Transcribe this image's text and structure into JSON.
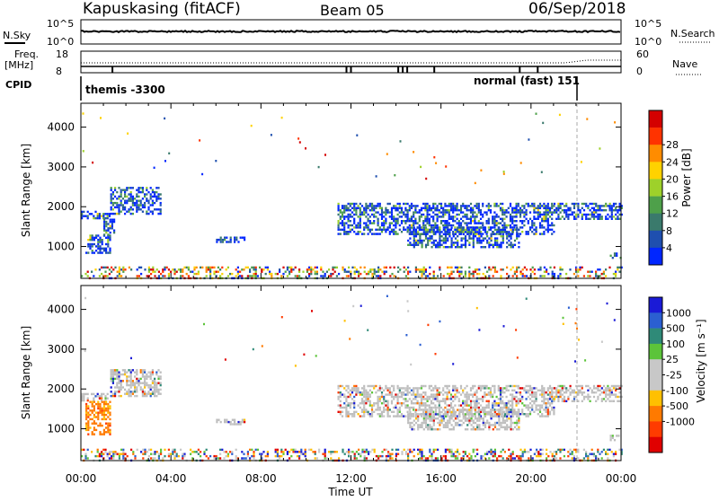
{
  "header": {
    "station": "Kapuskasing (fitACF)",
    "beam": "Beam 05",
    "date": "06/Sep/2018"
  },
  "strip_labels": {
    "nsky": "N.Sky",
    "nsky_ticks": [
      "10^5",
      "10^0"
    ],
    "nsearch": "N.Search",
    "nsearch_ticks": [
      "10^5",
      "10^0"
    ],
    "freq": "Freq.",
    "freq_unit": "[MHz]",
    "freq_ticks": [
      "18",
      "8"
    ],
    "nave": "Nave",
    "nave_ticks": [
      "60",
      "0"
    ],
    "cpid": "CPID",
    "cpid_left": "themis -3300",
    "cpid_right": "normal (fast) 151"
  },
  "colors": {
    "power_scale": [
      "#0026ff",
      "#1f4faf",
      "#3a7a6c",
      "#4ea04a",
      "#9ed12a",
      "#ffd200",
      "#ff8c00",
      "#ff3300",
      "#d40000"
    ],
    "velocity_scale": [
      "#1a1ad6",
      "#2b5fd1",
      "#2f8a78",
      "#5cc43a",
      "#c8c8c8",
      "#c8c8c8",
      "#ffc000",
      "#ff7a00",
      "#ff3b00",
      "#e00000"
    ],
    "ground_scatter": "#bebebe"
  },
  "chart_data": [
    {
      "type": "heatmap",
      "title": "Power",
      "xlabel": "Time UT",
      "ylabel": "Slant Range [km]",
      "xlim": [
        "00:00",
        "00:00"
      ],
      "ylim": [
        200,
        4600
      ],
      "x_ticks": [
        "00:00",
        "04:00",
        "08:00",
        "12:00",
        "16:00",
        "20:00",
        "00:00"
      ],
      "y_ticks": [
        1000,
        2000,
        3000,
        4000
      ],
      "colorbar": {
        "label": "Power [dB]",
        "ticks": [
          "4",
          "8",
          "12",
          "16",
          "20",
          "24",
          "28"
        ]
      },
      "echo_bands": [
        {
          "t_start": 0.0,
          "t_end": 1.3,
          "range_start": 1700,
          "range_end": 1900
        },
        {
          "t_start": 1.3,
          "t_end": 3.5,
          "range_start": 1850,
          "range_end": 2500
        },
        {
          "t_start": 0.2,
          "t_end": 1.3,
          "range_start": 850,
          "range_end": 1300
        },
        {
          "t_start": 1.0,
          "t_end": 1.5,
          "range_start": 1300,
          "range_end": 1700
        },
        {
          "t_start": 6.0,
          "t_end": 7.3,
          "range_start": 1100,
          "range_end": 1250
        },
        {
          "t_start": 11.4,
          "t_end": 21.0,
          "range_start": 1300,
          "range_end": 2100
        },
        {
          "t_start": 14.5,
          "t_end": 19.5,
          "range_start": 1000,
          "range_end": 1500
        },
        {
          "t_start": 21.0,
          "t_end": 24.0,
          "range_start": 1700,
          "range_end": 2100
        },
        {
          "t_start": 23.5,
          "t_end": 24.0,
          "range_start": 700,
          "range_end": 850
        },
        {
          "t_start": 0.0,
          "t_end": 24.0,
          "range_start": 200,
          "range_end": 500
        }
      ]
    },
    {
      "type": "heatmap",
      "title": "Velocity",
      "xlabel": "Time UT",
      "ylabel": "Slant Range [km]",
      "xlim": [
        "00:00",
        "00:00"
      ],
      "ylim": [
        200,
        4600
      ],
      "x_ticks": [
        "00:00",
        "04:00",
        "08:00",
        "12:00",
        "16:00",
        "20:00",
        "00:00"
      ],
      "y_ticks": [
        1000,
        2000,
        3000,
        4000
      ],
      "colorbar": {
        "label": "Velocity [m s⁻¹]",
        "ticks": [
          "1000",
          "500",
          "100",
          "25",
          "-25",
          "-100",
          "-500",
          "-1000"
        ]
      },
      "echo_bands": [
        {
          "t_start": 0.0,
          "t_end": 1.3,
          "range_start": 1700,
          "range_end": 1900
        },
        {
          "t_start": 1.3,
          "t_end": 3.5,
          "range_start": 1850,
          "range_end": 2500
        },
        {
          "t_start": 0.2,
          "t_end": 1.3,
          "range_start": 850,
          "range_end": 1700
        },
        {
          "t_start": 6.0,
          "t_end": 7.3,
          "range_start": 1100,
          "range_end": 1250
        },
        {
          "t_start": 11.4,
          "t_end": 21.0,
          "range_start": 1300,
          "range_end": 2100
        },
        {
          "t_start": 14.5,
          "t_end": 19.5,
          "range_start": 1000,
          "range_end": 1500
        },
        {
          "t_start": 21.0,
          "t_end": 24.0,
          "range_start": 1700,
          "range_end": 2100
        },
        {
          "t_start": 23.5,
          "t_end": 24.0,
          "range_start": 700,
          "range_end": 850
        },
        {
          "t_start": 0.0,
          "t_end": 24.0,
          "range_start": 200,
          "range_end": 500
        }
      ]
    }
  ]
}
